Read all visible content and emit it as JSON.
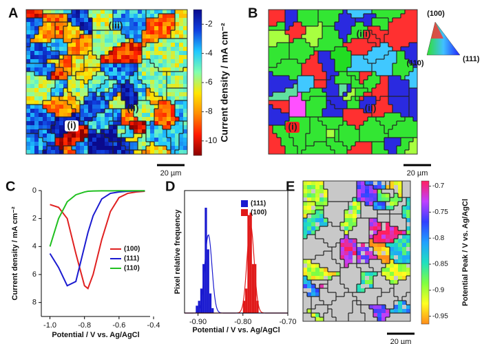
{
  "chart_data": [
    {
      "type": "heatmap",
      "panel": "A",
      "colorbar_label": "Current density / mA cm⁻²",
      "clim": [
        -11,
        -1
      ],
      "colorbar_ticks": [
        -2,
        -4,
        -6,
        -8,
        -10
      ],
      "colorscale": [
        "#8b0000",
        "#ff1a00",
        "#ff8c00",
        "#ffe600",
        "#80ffb0",
        "#20c8ff",
        "#1040e0",
        "#0a0a8c"
      ],
      "annotations": [
        "(i)",
        "(ii)",
        "(iii)"
      ],
      "scale_bar": "20 µm"
    },
    {
      "type": "orientation_map",
      "panel": "B",
      "legend": [
        "(100)",
        "(110)",
        "(111)"
      ],
      "colors": [
        "#33e633",
        "#2a2ae0",
        "#ff3030",
        "#40c8ff",
        "#a8ff40",
        "#ff50ff",
        "#60e0a0",
        "#22dd22"
      ],
      "annotations": [
        "(i)",
        "(ii)",
        "(iii)"
      ],
      "scale_bar": "20 µm"
    },
    {
      "type": "line",
      "panel": "C",
      "x_label": "Potential / V vs. Ag/AgCl",
      "y_label": "Current density / mA cm⁻²",
      "x": [
        -1.0,
        -0.95,
        -0.9,
        -0.85,
        -0.8,
        -0.78,
        -0.75,
        -0.7,
        -0.65,
        -0.6,
        -0.55,
        -0.5,
        -0.45
      ],
      "series": [
        {
          "name": "(100)",
          "color": "#e02020",
          "values": [
            1.0,
            1.2,
            2.0,
            4.5,
            6.8,
            7.0,
            6.0,
            3.5,
            1.5,
            0.5,
            0.2,
            0.1,
            0.05
          ]
        },
        {
          "name": "(111)",
          "color": "#1a1ad0",
          "values": [
            4.5,
            5.5,
            6.8,
            6.5,
            4.0,
            3.0,
            1.8,
            0.6,
            0.2,
            0.1,
            0.05,
            0.03,
            0.02
          ]
        },
        {
          "name": "(110)",
          "color": "#20c020",
          "values": [
            4.0,
            2.0,
            0.8,
            0.3,
            0.1,
            0.05,
            0.03,
            0.02,
            0.02,
            0.01,
            0.01,
            0.01,
            0.01
          ]
        }
      ],
      "xlim": [
        -1.05,
        -0.42
      ],
      "xticks": [
        {
          "value": -1.0,
          "label": "-1.0"
        },
        {
          "value": -0.8,
          "label": "-0.8"
        },
        -0.6,
        -0.4
      ],
      "ylim": [
        0,
        9
      ],
      "yticks": [
        0,
        2,
        4,
        6,
        8
      ],
      "y_inverted": true
    },
    {
      "type": "histogram",
      "panel": "D",
      "x_label": "Potential / V vs. Ag/AgCl",
      "y_label": "Pixel relative frequency",
      "series": [
        {
          "name": "(111)",
          "color": "#1a1ad0",
          "bins": [
            -0.905,
            -0.9,
            -0.895,
            -0.89,
            -0.885,
            -0.88,
            -0.875,
            -0.87,
            -0.865
          ],
          "values": [
            0.03,
            0.05,
            0.1,
            0.2,
            0.43,
            0.26,
            0.08,
            0.02
          ],
          "fit": {
            "mean": -0.877,
            "sd": 0.008,
            "peak": 0.32
          }
        },
        {
          "name": "(100)",
          "color": "#e01a1a",
          "bins": [
            -0.8,
            -0.795,
            -0.79,
            -0.785,
            -0.78,
            -0.775,
            -0.77,
            -0.765
          ],
          "values": [
            0.05,
            0.1,
            0.4,
            0.41,
            0.2,
            0.2,
            0.05
          ],
          "fit": {
            "mean": -0.783,
            "sd": 0.008,
            "peak": 0.36
          }
        }
      ],
      "xlim": [
        -0.93,
        -0.7
      ],
      "xticks": [
        {
          "value": -0.9,
          "label": "-0.90"
        },
        {
          "value": -0.8,
          "label": "-0.80"
        },
        {
          "value": -0.7,
          "label": "-0.70"
        }
      ],
      "ylim": [
        0,
        0.5
      ]
    },
    {
      "type": "heatmap",
      "panel": "E",
      "colorbar_label": "Potential Peak / V vs. Ag/AgCl",
      "clim": [
        -0.965,
        -0.69
      ],
      "colorbar_ticks": [
        -0.7,
        -0.75,
        -0.8,
        -0.85,
        -0.9,
        -0.95
      ],
      "colorscale": [
        "#ff8c1a",
        "#ffff20",
        "#80ff40",
        "#20e0c0",
        "#20a0ff",
        "#3040ff",
        "#c040ff",
        "#ff2060"
      ],
      "background_color": "#c8c8c8",
      "scale_bar": "20 µm"
    }
  ]
}
